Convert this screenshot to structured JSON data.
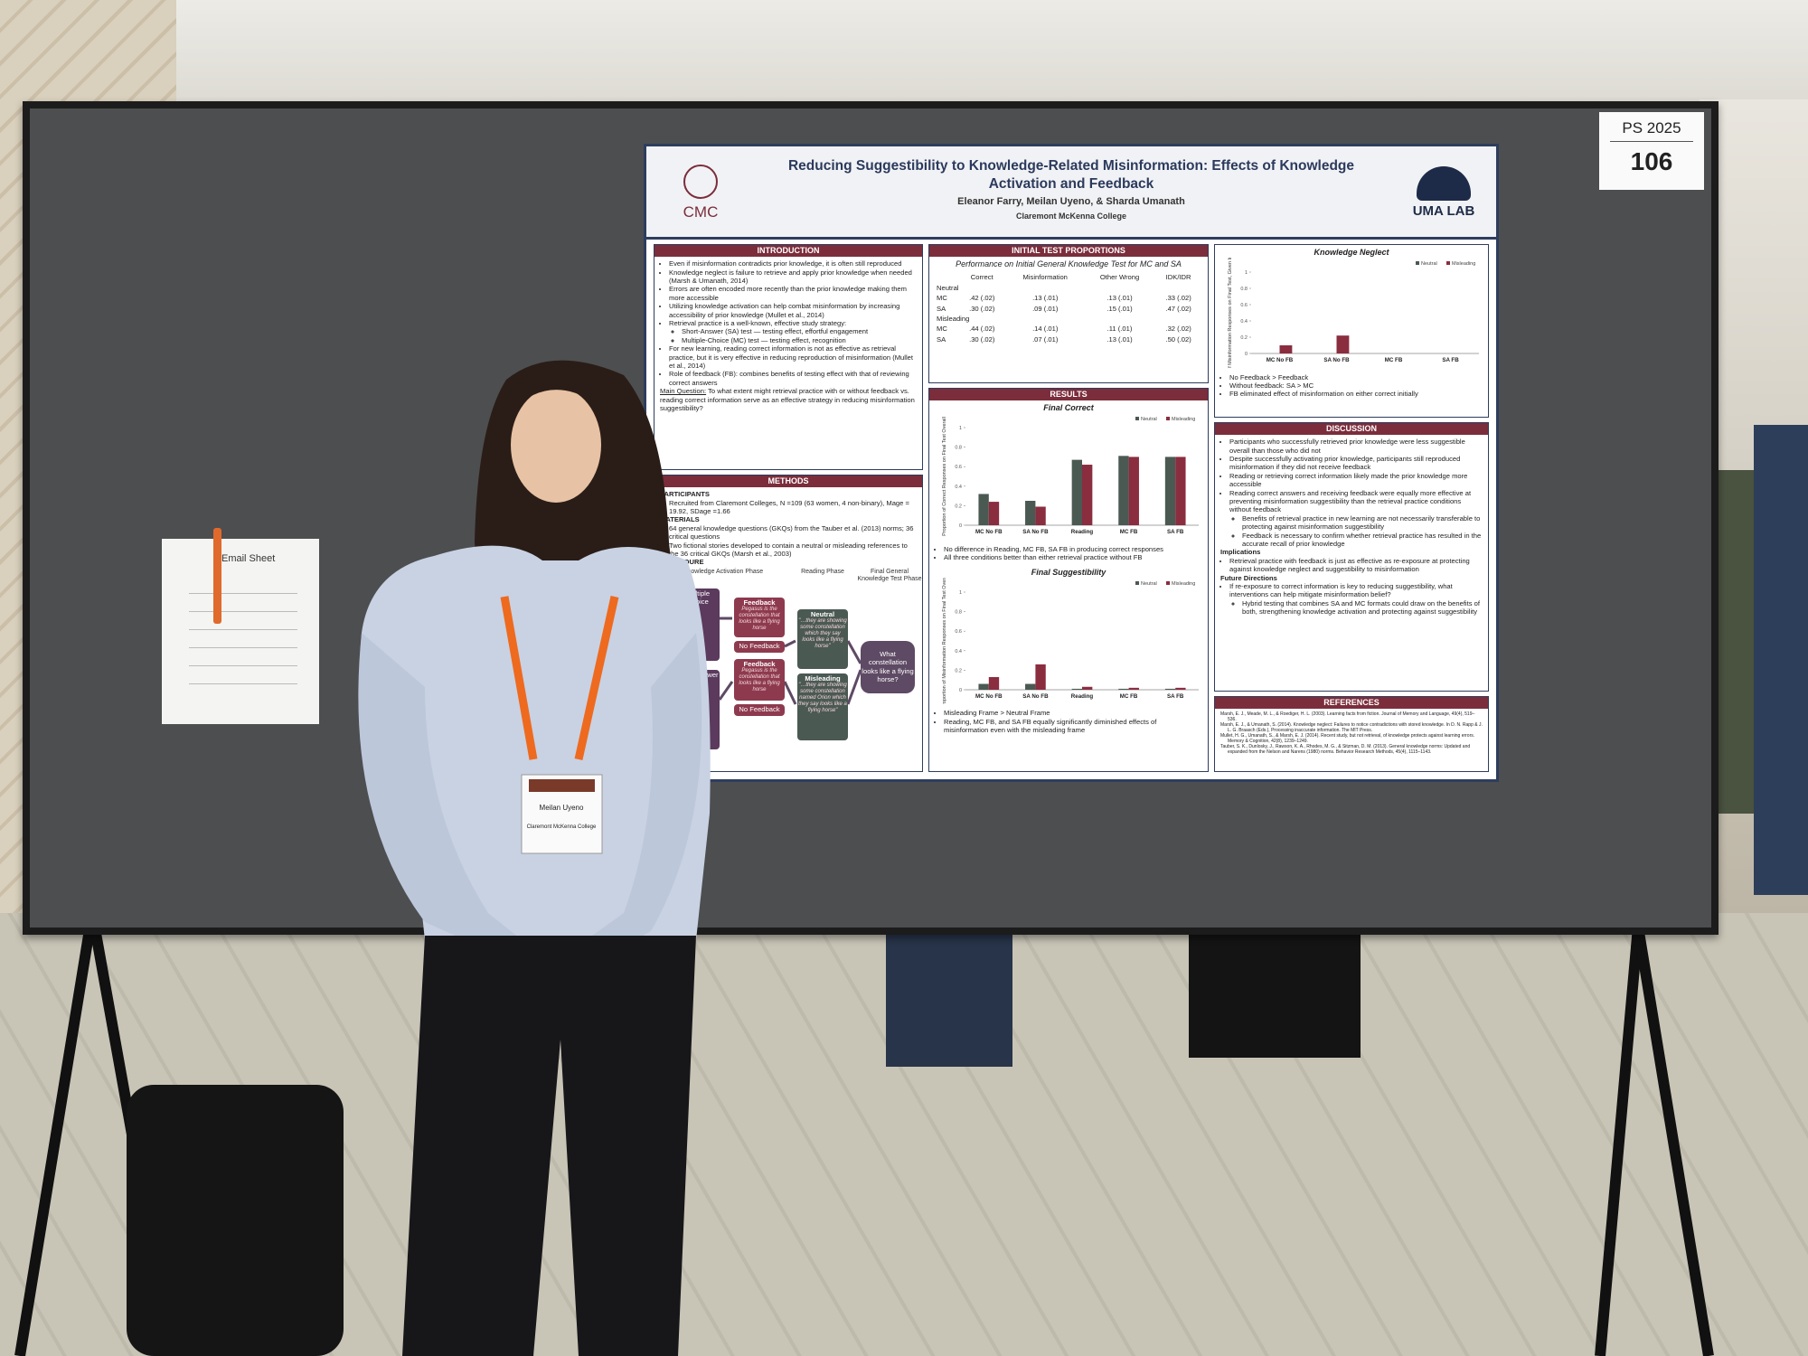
{
  "board_card": {
    "line1": "PS 2025",
    "line2": "106"
  },
  "sheet": {
    "title": "Email Sheet"
  },
  "badge": {
    "name": "Meilan Uyeno",
    "school": "Claremont McKenna College"
  },
  "poster": {
    "logo_left": "CMC",
    "logo_right": "UMA LAB",
    "title": "Reducing Suggestibility to Knowledge-Related Misinformation: Effects of Knowledge Activation and Feedback",
    "authors": "Eleanor Farry, Meilan Uyeno, & Sharda Umanath",
    "affiliation": "Claremont McKenna College",
    "introduction": {
      "heading": "INTRODUCTION",
      "bullets": [
        "Even if misinformation contradicts prior knowledge, it is often still reproduced",
        "Knowledge neglect is failure to retrieve and apply prior knowledge when needed (Marsh & Umanath, 2014)",
        "Errors are often encoded more recently than the prior knowledge making them more accessible",
        "Utilizing knowledge activation can help combat misinformation by increasing accessibility of prior knowledge (Mullet et al., 2014)",
        "Retrieval practice is a well-known, effective study strategy:",
        "For new learning, reading correct information is not as effective as retrieval practice, but it is very effective in reducing reproduction of misinformation (Mullet et al., 2014)",
        "Role of feedback (FB): combines benefits of testing effect with that of reviewing correct answers"
      ],
      "sub_bullets": [
        "Short-Answer (SA) test — testing effect, effortful engagement",
        "Multiple-Choice (MC) test — testing effect, recognition"
      ],
      "main_question_label": "Main Question:",
      "main_question": "To what extent might retrieval practice with or without feedback vs. reading correct information serve as an effective strategy in reducing misinformation suggestibility?"
    },
    "methods": {
      "heading": "METHODS",
      "participants_label": "PARTICIPANTS",
      "participants": [
        "Recruited from Claremont Colleges, N =109 (63 women, 4 non-binary), Mage = 19.92, SDage =1.66"
      ],
      "materials_label": "MATERIALS",
      "materials": [
        "64 general knowledge questions (GKQs) from the Tauber et al. (2013) norms; 36 critical questions",
        "Two fictional stories developed to contain a neutral or misleading references to the 36 critical GKQs (Marsh et al., 2003)"
      ],
      "procedure_label": "PROCEDURE",
      "procedure": {
        "phase_activation": "Knowledge Activation Phase",
        "phase_reading": "Reading Phase",
        "phase_test": "Final General Knowledge Test Phase",
        "multiple_choice": "Multiple Choice",
        "short_answer": "Short Answer",
        "feedback_1": "Feedback",
        "feedback_1_text": "Pegasus is the constellation that looks like a flying horse",
        "no_feedback_1": "No Feedback",
        "feedback_2": "Feedback",
        "feedback_2_text": "Pegasus is the constellation that looks like a flying horse",
        "no_feedback_2": "No Feedback",
        "neutral": "Neutral",
        "neutral_text": "\"…they are showing some constellation which they say looks like a flying horse\"",
        "misleading": "Misleading",
        "misleading_text": "\"…they are showing some constellation named Orion which they say looks like a flying horse\"",
        "question": "What constellation looks like a flying horse?"
      }
    },
    "initial_test": {
      "heading": "INITIAL TEST PROPORTIONS",
      "caption": "Performance on Initial General Knowledge Test for MC and SA",
      "columns": [
        "Correct",
        "Misinformation",
        "Other Wrong",
        "IDK/IDR"
      ],
      "groups": [
        {
          "name": "Neutral",
          "rows": [
            {
              "label": "MC",
              "cells": [
                ".42 (.02)",
                ".13 (.01)",
                ".13 (.01)",
                ".33 (.02)"
              ]
            },
            {
              "label": "SA",
              "cells": [
                ".30 (.02)",
                ".09 (.01)",
                ".15 (.01)",
                ".47 (.02)"
              ]
            }
          ]
        },
        {
          "name": "Misleading",
          "rows": [
            {
              "label": "MC",
              "cells": [
                ".44 (.02)",
                ".14 (.01)",
                ".11 (.01)",
                ".32 (.02)"
              ]
            },
            {
              "label": "SA",
              "cells": [
                ".30 (.02)",
                ".07 (.01)",
                ".13 (.01)",
                ".50 (.02)"
              ]
            }
          ]
        }
      ]
    },
    "results": {
      "heading": "RESULTS",
      "final_correct": {
        "type": "bar",
        "title": "Final Correct",
        "y_label": "Proportion of Correct Responses on Final Test Overall",
        "categories": [
          "MC No FB",
          "SA No FB",
          "Reading",
          "MC FB",
          "SA FB"
        ],
        "series": [
          {
            "name": "Neutral",
            "color": "#4b5953",
            "values": [
              0.32,
              0.25,
              0.67,
              0.71,
              0.7
            ]
          },
          {
            "name": "Misleading",
            "color": "#8a2d3e",
            "values": [
              0.24,
              0.19,
              0.62,
              0.7,
              0.7
            ]
          }
        ],
        "ylim": [
          0,
          1
        ],
        "yticks": [
          0,
          0.2,
          0.4,
          0.6,
          0.8,
          1
        ],
        "bullets": [
          "No difference in Reading, MC FB, SA FB in producing correct responses",
          "All three conditions better than either retrieval practice without FB"
        ]
      },
      "final_suggestibility": {
        "type": "bar",
        "title": "Final Suggestibility",
        "y_label": "Proportion of Misinformation Responses on Final Test Overall",
        "categories": [
          "MC No FB",
          "SA No FB",
          "Reading",
          "MC FB",
          "SA FB"
        ],
        "series": [
          {
            "name": "Neutral",
            "color": "#4b5953",
            "values": [
              0.06,
              0.06,
              0.01,
              0.01,
              0.01
            ]
          },
          {
            "name": "Misleading",
            "color": "#8a2d3e",
            "values": [
              0.13,
              0.26,
              0.03,
              0.02,
              0.02
            ]
          }
        ],
        "ylim": [
          0,
          1
        ],
        "yticks": [
          0,
          0.2,
          0.4,
          0.6,
          0.8,
          1
        ],
        "bullets": [
          "Misleading Frame > Neutral Frame",
          "Reading, MC FB, and SA FB equally significantly diminished effects of misinformation even with the misleading frame"
        ]
      }
    },
    "knowledge_neglect": {
      "type": "bar",
      "title": "Knowledge Neglect",
      "y_label": "Proportion of Misinformation Responses on Final Test, Given Initial Correct",
      "categories": [
        "MC No FB",
        "SA No FB",
        "MC FB",
        "SA FB"
      ],
      "series": [
        {
          "name": "Neutral",
          "color": "#4b5953",
          "values": [
            0,
            0,
            0,
            0
          ]
        },
        {
          "name": "Misleading",
          "color": "#8a2d3e",
          "values": [
            0.1,
            0.22,
            0,
            0
          ]
        }
      ],
      "ylim": [
        0,
        1
      ],
      "yticks": [
        0,
        0.2,
        0.4,
        0.6,
        0.8,
        1
      ],
      "bullets": [
        "No Feedback > Feedback",
        "Without feedback: SA > MC",
        "FB eliminated effect of misinformation on either correct initially"
      ]
    },
    "discussion": {
      "heading": "DISCUSSION",
      "bullets": [
        "Participants who successfully retrieved prior knowledge were less suggestible overall than those who did not",
        "Despite successfully activating prior knowledge, participants still reproduced misinformation if they did not receive feedback",
        "Reading or retrieving correct information likely made the prior knowledge more accessible",
        "Reading correct answers and receiving feedback were equally more effective at preventing misinformation suggestibility than the retrieval practice conditions without feedback"
      ],
      "sub_bullets": [
        "Benefits of retrieval practice in new learning are not necessarily transferable to protecting against misinformation suggestibility",
        "Feedback is necessary to confirm whether retrieval practice has resulted in the accurate recall of prior knowledge"
      ],
      "implications_label": "Implications",
      "implications": [
        "Retrieval practice with feedback is just as effective as re-exposure at protecting against knowledge neglect and suggestibility to misinformation"
      ],
      "future_label": "Future Directions",
      "future": [
        "If re-exposure to correct information is key to reducing suggestibility, what interventions can help mitigate misinformation belief?"
      ],
      "future_sub": [
        "Hybrid testing that combines SA and MC formats could draw on the benefits of both, strengthening knowledge activation and protecting against suggestibility"
      ]
    },
    "references": {
      "heading": "REFERENCES",
      "items": [
        "Marsh, E. J., Meade, M. L., & Roediger, H. L. (2003). Learning facts from fiction. Journal of Memory and Language, 49(4), 519–536.",
        "Marsh, E. J., & Umanath, S. (2014). Knowledge neglect: Failures to notice contradictions with stored knowledge. In D. N. Rapp & J. L. G. Braasch (Eds.), Processing inaccurate information. The MIT Press.",
        "Mullet, H. G., Umanath, S., & Marsh, E. J. (2014). Recent study, but not retrieval, of knowledge protects against learning errors. Memory & Cognition, 42(8), 1239–1249.",
        "Tauber, S. K., Dunlosky, J., Rawson, K. A., Rhodes, M. G., & Sitzman, D. M. (2013). General knowledge norms: Updated and expanded from the Nelson and Narens (1980) norms. Behavior Research Methods, 45(4), 1115–1143."
      ]
    }
  }
}
